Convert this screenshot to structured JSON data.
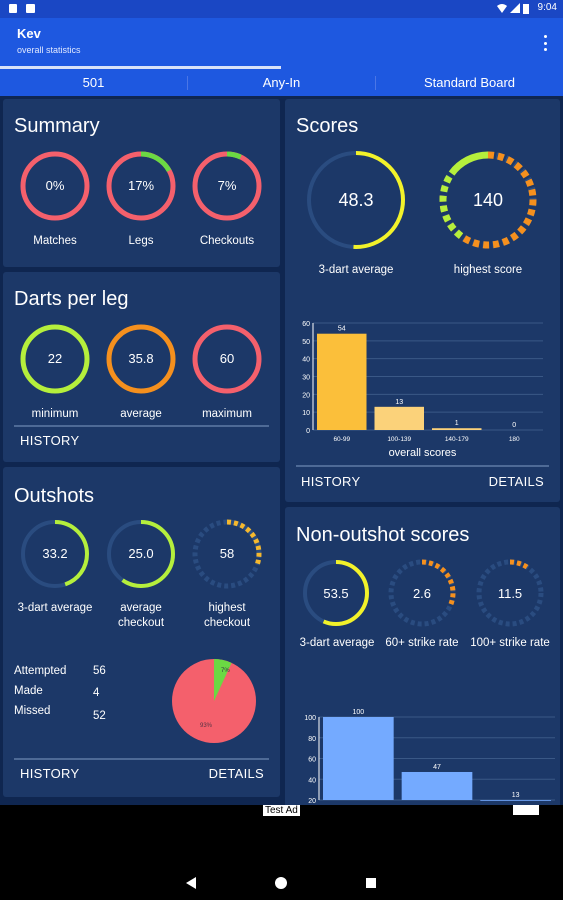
{
  "appbar": {
    "title": "Kev",
    "subtitle": "overall statistics"
  },
  "statusbar": {
    "time": "9:04"
  },
  "tabs": [
    "501",
    "Any-In",
    "Standard Board"
  ],
  "summary": {
    "title": "Summary",
    "gauges": [
      {
        "value": "0%",
        "label": "Matches",
        "fill": 0
      },
      {
        "value": "17%",
        "label": "Legs",
        "fill": 0.17
      },
      {
        "value": "7%",
        "label": "Checkouts",
        "fill": 0.07
      }
    ]
  },
  "darts_per_leg": {
    "title": "Darts per leg",
    "gauges": [
      {
        "value": "22",
        "label": "minimum"
      },
      {
        "value": "35.8",
        "label": "average"
      },
      {
        "value": "60",
        "label": "maximum"
      }
    ],
    "history": "HISTORY"
  },
  "outshots": {
    "title": "Outshots",
    "gauges": [
      {
        "value": "33.2",
        "label": "3-dart average"
      },
      {
        "value": "25.0",
        "label": "average checkout"
      },
      {
        "value": "58",
        "label": "highest checkout"
      }
    ],
    "stats": [
      {
        "label": "Attempted",
        "value": "56"
      },
      {
        "label": "Made",
        "value": "4"
      },
      {
        "label": "Missed",
        "value": "52"
      }
    ],
    "pie": {
      "made_label": "7%",
      "missed_label": "93%"
    },
    "history": "HISTORY",
    "details": "DETAILS"
  },
  "scores": {
    "title": "Scores",
    "avg": {
      "value": "48.3",
      "label": "3-dart average"
    },
    "high": {
      "value": "140",
      "label": "highest score"
    },
    "chart_label": "overall scores",
    "history": "HISTORY",
    "details": "DETAILS"
  },
  "nonoutshot": {
    "title": "Non-outshot scores",
    "gauges": [
      {
        "value": "53.5",
        "label": "3-dart average"
      },
      {
        "value": "2.6",
        "label": "60+ strike rate"
      },
      {
        "value": "11.5",
        "label": "100+ strike rate"
      }
    ]
  },
  "ad": {
    "label": "Test Ad"
  },
  "chart_data": [
    {
      "type": "bar",
      "categories": [
        "60-99",
        "100-139",
        "140-179",
        "180"
      ],
      "values": [
        54,
        13,
        1,
        0
      ],
      "xlabel": "overall scores",
      "yticks": [
        0,
        10,
        20,
        30,
        40,
        50,
        60
      ],
      "ylim": [
        0,
        60
      ],
      "colors": [
        "#fbbf3a",
        "#fbd27a",
        "#fbd27a",
        "#fbd27a"
      ]
    },
    {
      "type": "bar",
      "categories": [
        "",
        "",
        ""
      ],
      "values": [
        100,
        47,
        13
      ],
      "yticks": [
        20,
        40,
        60,
        80,
        100
      ],
      "ylim": [
        20,
        100
      ],
      "colors": [
        "#74aaff",
        "#74aaff",
        "#74aaff"
      ]
    }
  ],
  "colors": {
    "red": "#f4606c",
    "green": "#6bd943",
    "lime": "#b5ef3c",
    "orange": "#f5901e",
    "yellow": "#f2f22a",
    "track": "#2a4c80"
  }
}
